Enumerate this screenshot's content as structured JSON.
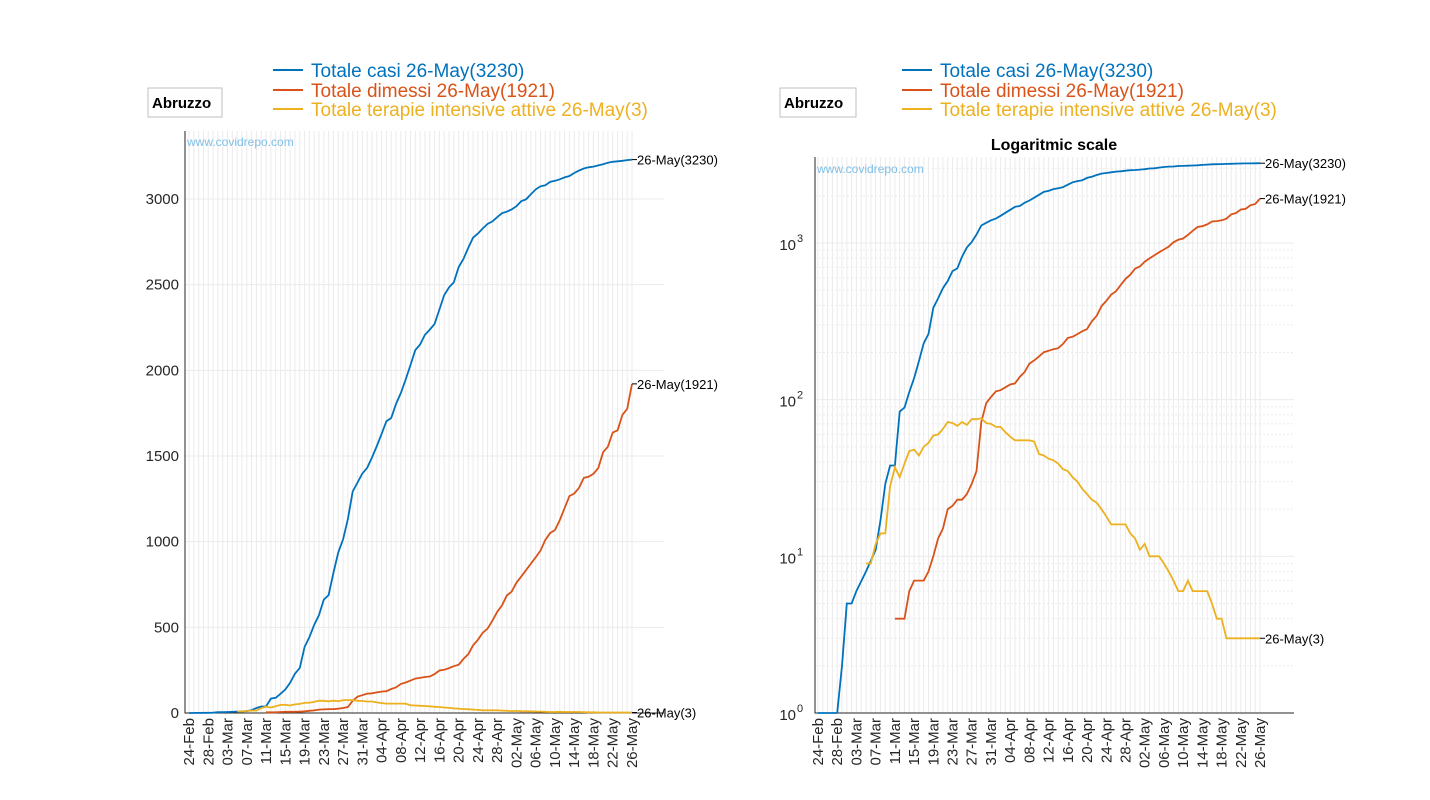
{
  "chart_data": [
    {
      "type": "line",
      "panel": "linear",
      "region_label": "Abruzzo",
      "watermark": "www.covidrepo.com",
      "title": "",
      "yscale": "linear",
      "ylim": [
        0,
        3300
      ],
      "yticks": [
        0,
        500,
        1000,
        1500,
        2000,
        2500,
        3000
      ],
      "ytick_labels": [
        "0",
        "500",
        "1000",
        "1500",
        "2000",
        "2500",
        "3000"
      ],
      "xtick_labels": [
        "24-Feb",
        "28-Feb",
        "03-Mar",
        "07-Mar",
        "11-Mar",
        "15-Mar",
        "19-Mar",
        "23-Mar",
        "27-Mar",
        "31-Mar",
        "04-Apr",
        "08-Apr",
        "12-Apr",
        "16-Apr",
        "20-Apr",
        "24-Apr",
        "28-Apr",
        "02-May",
        "06-May",
        "10-May",
        "14-May",
        "18-May",
        "22-May",
        "26-May"
      ],
      "legend": [
        {
          "label": "Totale casi 26-May(3230)",
          "color": "#0072bd"
        },
        {
          "label": "Totale dimessi 26-May(1921)",
          "color": "#d95319"
        },
        {
          "label": "Totale terapie intensive attive 26-May(3)",
          "color": "#edb120"
        }
      ],
      "end_labels": [
        "26-May(3230)",
        "26-May(1921)",
        "26-May(3)"
      ]
    },
    {
      "type": "line",
      "panel": "log",
      "region_label": "Abruzzo",
      "watermark": "www.covidrepo.com",
      "title": "Logaritmic scale",
      "yscale": "log",
      "ylim": [
        1,
        3300
      ],
      "ytick_labels": [
        "10^0",
        "10^1",
        "10^2",
        "10^3"
      ],
      "xtick_labels": [
        "24-Feb",
        "28-Feb",
        "03-Mar",
        "07-Mar",
        "11-Mar",
        "15-Mar",
        "19-Mar",
        "23-Mar",
        "27-Mar",
        "31-Mar",
        "04-Apr",
        "08-Apr",
        "12-Apr",
        "16-Apr",
        "20-Apr",
        "24-Apr",
        "28-Apr",
        "02-May",
        "06-May",
        "10-May",
        "14-May",
        "18-May",
        "22-May",
        "26-May"
      ],
      "legend": [
        {
          "label": "Totale casi 26-May(3230)",
          "color": "#0072bd"
        },
        {
          "label": "Totale dimessi 26-May(1921)",
          "color": "#d95319"
        },
        {
          "label": "Totale terapie intensive attive 26-May(3)",
          "color": "#edb120"
        }
      ],
      "end_labels": [
        "26-May(3230)",
        "26-May(1921)",
        "26-May(3)"
      ]
    }
  ],
  "series_data": {
    "x_dates_from": "24-Feb",
    "x_dates_to": "26-May",
    "x_days": 92,
    "casi": [
      [
        0,
        0
      ],
      [
        4,
        1
      ],
      [
        5,
        2
      ],
      [
        6,
        5
      ],
      [
        7,
        5
      ],
      [
        8,
        6
      ],
      [
        10,
        8
      ],
      [
        12,
        11
      ],
      [
        13,
        17
      ],
      [
        14,
        29
      ],
      [
        15,
        38
      ],
      [
        16,
        38
      ],
      [
        17,
        84
      ],
      [
        18,
        89
      ],
      [
        19,
        112
      ],
      [
        20,
        137
      ],
      [
        21,
        176
      ],
      [
        22,
        229
      ],
      [
        23,
        263
      ],
      [
        24,
        386
      ],
      [
        25,
        443
      ],
      [
        26,
        515
      ],
      [
        27,
        572
      ],
      [
        28,
        662
      ],
      [
        29,
        688
      ],
      [
        30,
        820
      ],
      [
        31,
        938
      ],
      [
        32,
        1014
      ],
      [
        33,
        1133
      ],
      [
        34,
        1293
      ],
      [
        35,
        1345
      ],
      [
        36,
        1397
      ],
      [
        37,
        1431
      ],
      [
        38,
        1491
      ],
      [
        39,
        1558
      ],
      [
        40,
        1629
      ],
      [
        41,
        1703
      ],
      [
        42,
        1722
      ],
      [
        43,
        1805
      ],
      [
        44,
        1868
      ],
      [
        45,
        1947
      ],
      [
        46,
        2031
      ],
      [
        47,
        2118
      ],
      [
        48,
        2151
      ],
      [
        49,
        2207
      ],
      [
        50,
        2238
      ],
      [
        51,
        2271
      ],
      [
        52,
        2355
      ],
      [
        53,
        2439
      ],
      [
        54,
        2484
      ],
      [
        55,
        2513
      ],
      [
        56,
        2603
      ],
      [
        57,
        2651
      ],
      [
        58,
        2715
      ],
      [
        59,
        2775
      ],
      [
        60,
        2798
      ],
      [
        61,
        2828
      ],
      [
        62,
        2854
      ],
      [
        63,
        2869
      ],
      [
        64,
        2894
      ],
      [
        65,
        2917
      ],
      [
        66,
        2926
      ],
      [
        67,
        2939
      ],
      [
        68,
        2958
      ],
      [
        69,
        2987
      ],
      [
        70,
        2998
      ],
      [
        71,
        3028
      ],
      [
        72,
        3056
      ],
      [
        73,
        3074
      ],
      [
        74,
        3080
      ],
      [
        75,
        3100
      ],
      [
        76,
        3106
      ],
      [
        77,
        3115
      ],
      [
        78,
        3126
      ],
      [
        79,
        3134
      ],
      [
        80,
        3152
      ],
      [
        81,
        3166
      ],
      [
        82,
        3178
      ],
      [
        83,
        3185
      ],
      [
        84,
        3189
      ],
      [
        85,
        3196
      ],
      [
        86,
        3203
      ],
      [
        87,
        3212
      ],
      [
        88,
        3217
      ],
      [
        89,
        3220
      ],
      [
        90,
        3223
      ],
      [
        91,
        3227
      ],
      [
        92,
        3230
      ]
    ],
    "dimessi": [
      [
        16,
        4
      ],
      [
        18,
        4
      ],
      [
        19,
        6
      ],
      [
        20,
        7
      ],
      [
        22,
        7
      ],
      [
        23,
        8
      ],
      [
        24,
        10
      ],
      [
        25,
        13
      ],
      [
        26,
        15
      ],
      [
        27,
        20
      ],
      [
        28,
        21
      ],
      [
        29,
        23
      ],
      [
        30,
        23
      ],
      [
        31,
        25
      ],
      [
        32,
        29
      ],
      [
        33,
        35
      ],
      [
        34,
        72
      ],
      [
        35,
        95
      ],
      [
        36,
        104
      ],
      [
        37,
        113
      ],
      [
        38,
        115
      ],
      [
        39,
        120
      ],
      [
        40,
        125
      ],
      [
        41,
        127
      ],
      [
        42,
        140
      ],
      [
        43,
        150
      ],
      [
        44,
        170
      ],
      [
        45,
        178
      ],
      [
        46,
        189
      ],
      [
        47,
        201
      ],
      [
        48,
        205
      ],
      [
        49,
        210
      ],
      [
        50,
        213
      ],
      [
        51,
        227
      ],
      [
        52,
        248
      ],
      [
        53,
        252
      ],
      [
        54,
        262
      ],
      [
        55,
        273
      ],
      [
        56,
        282
      ],
      [
        57,
        316
      ],
      [
        58,
        343
      ],
      [
        59,
        395
      ],
      [
        60,
        427
      ],
      [
        61,
        468
      ],
      [
        62,
        492
      ],
      [
        63,
        539
      ],
      [
        64,
        590
      ],
      [
        65,
        628
      ],
      [
        66,
        686
      ],
      [
        67,
        708
      ],
      [
        68,
        760
      ],
      [
        69,
        797
      ],
      [
        70,
        834
      ],
      [
        71,
        872
      ],
      [
        72,
        909
      ],
      [
        73,
        948
      ],
      [
        74,
        1010
      ],
      [
        75,
        1050
      ],
      [
        76,
        1068
      ],
      [
        77,
        1126
      ],
      [
        78,
        1196
      ],
      [
        79,
        1266
      ],
      [
        80,
        1281
      ],
      [
        81,
        1314
      ],
      [
        82,
        1372
      ],
      [
        83,
        1380
      ],
      [
        84,
        1396
      ],
      [
        85,
        1430
      ],
      [
        86,
        1522
      ],
      [
        87,
        1554
      ],
      [
        88,
        1637
      ],
      [
        89,
        1650
      ],
      [
        90,
        1740
      ],
      [
        91,
        1775
      ],
      [
        92,
        1921
      ]
    ],
    "terapie": [
      [
        10,
        9
      ],
      [
        11,
        9
      ],
      [
        12,
        12
      ],
      [
        13,
        14
      ],
      [
        14,
        14
      ],
      [
        15,
        28
      ],
      [
        16,
        37
      ],
      [
        17,
        32
      ],
      [
        18,
        39
      ],
      [
        19,
        47
      ],
      [
        20,
        48
      ],
      [
        21,
        44
      ],
      [
        22,
        50
      ],
      [
        23,
        53
      ],
      [
        24,
        59
      ],
      [
        25,
        60
      ],
      [
        26,
        65
      ],
      [
        27,
        72
      ],
      [
        28,
        71
      ],
      [
        29,
        68
      ],
      [
        30,
        72
      ],
      [
        31,
        69
      ],
      [
        32,
        75
      ],
      [
        33,
        75
      ],
      [
        34,
        76
      ],
      [
        35,
        71
      ],
      [
        36,
        70
      ],
      [
        37,
        67
      ],
      [
        38,
        67
      ],
      [
        39,
        62
      ],
      [
        40,
        58
      ],
      [
        41,
        55
      ],
      [
        42,
        55
      ],
      [
        43,
        55
      ],
      [
        44,
        55
      ],
      [
        45,
        54
      ],
      [
        46,
        45
      ],
      [
        47,
        44
      ],
      [
        48,
        42
      ],
      [
        49,
        41
      ],
      [
        50,
        39
      ],
      [
        51,
        36
      ],
      [
        52,
        35
      ],
      [
        53,
        32
      ],
      [
        54,
        30
      ],
      [
        55,
        27
      ],
      [
        56,
        25
      ],
      [
        57,
        23
      ],
      [
        58,
        22
      ],
      [
        59,
        20
      ],
      [
        60,
        18
      ],
      [
        61,
        16
      ],
      [
        62,
        16
      ],
      [
        63,
        16
      ],
      [
        64,
        16
      ],
      [
        65,
        14
      ],
      [
        66,
        13
      ],
      [
        67,
        11
      ],
      [
        68,
        12
      ],
      [
        69,
        10
      ],
      [
        70,
        10
      ],
      [
        71,
        10
      ],
      [
        72,
        9
      ],
      [
        73,
        8
      ],
      [
        74,
        7
      ],
      [
        75,
        6
      ],
      [
        76,
        6
      ],
      [
        77,
        7
      ],
      [
        78,
        6
      ],
      [
        79,
        6
      ],
      [
        80,
        6
      ],
      [
        81,
        6
      ],
      [
        82,
        5
      ],
      [
        83,
        4
      ],
      [
        84,
        4
      ],
      [
        85,
        3
      ],
      [
        86,
        3
      ],
      [
        87,
        3
      ],
      [
        88,
        3
      ],
      [
        89,
        3
      ],
      [
        90,
        3
      ],
      [
        91,
        3
      ],
      [
        92,
        3
      ]
    ]
  }
}
